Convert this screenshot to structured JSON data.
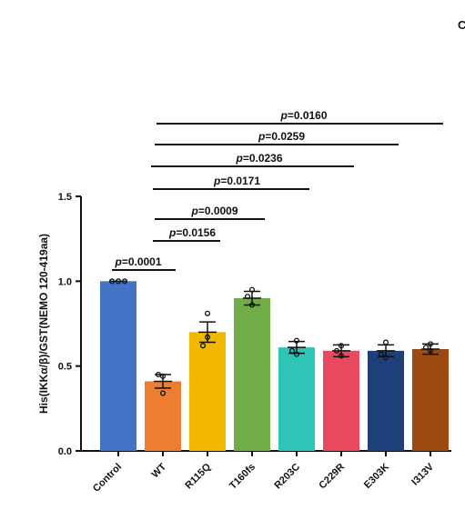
{
  "panel_label": "C",
  "chart_data": {
    "type": "bar",
    "ylabel": "His(IKKα/β)/GST(NEMO 120-419aa)",
    "ylim": [
      0,
      1.5
    ],
    "yticks": [
      "0.0",
      "0.5",
      "1.0",
      "1.5"
    ],
    "categories": [
      "Control",
      "WT",
      "R115Q",
      "T160fs",
      "R203C",
      "C229R",
      "E303K",
      "I313V"
    ],
    "values": [
      1.0,
      0.41,
      0.7,
      0.9,
      0.61,
      0.59,
      0.59,
      0.6
    ],
    "errors": [
      0.0,
      0.04,
      0.06,
      0.04,
      0.035,
      0.035,
      0.035,
      0.03
    ],
    "colors": [
      "#4472c4",
      "#ed7d31",
      "#f2b800",
      "#70ad47",
      "#2ec4b6",
      "#e8495f",
      "#1f3f7a",
      "#9c4a10"
    ],
    "points": [
      [
        1.0,
        1.0,
        1.0
      ],
      [
        0.44,
        0.45,
        0.34
      ],
      [
        0.81,
        0.62,
        0.67
      ],
      [
        0.95,
        0.91,
        0.86
      ],
      [
        0.65,
        0.59,
        0.57
      ],
      [
        0.62,
        0.59,
        0.56
      ],
      [
        0.64,
        0.57,
        0.55
      ],
      [
        0.63,
        0.61,
        0.59
      ]
    ],
    "comparisons": [
      {
        "from": 0,
        "to": 1,
        "label_prefix": "p",
        "label_value": "=0.0001"
      },
      {
        "from": 1,
        "to": 2,
        "label_prefix": "p",
        "label_value": "=0.0156"
      },
      {
        "from": 1,
        "to": 3,
        "label_prefix": "p",
        "label_value": "=0.0009"
      },
      {
        "from": 1,
        "to": 4,
        "label_prefix": "p",
        "label_value": "=0.0171"
      },
      {
        "from": 1,
        "to": 5,
        "label_prefix": "p",
        "label_value": "=0.0236"
      },
      {
        "from": 1,
        "to": 6,
        "label_prefix": "p",
        "label_value": "=0.0259"
      },
      {
        "from": 1,
        "to": 7,
        "label_prefix": "p",
        "label_value": "=0.0160"
      }
    ]
  }
}
